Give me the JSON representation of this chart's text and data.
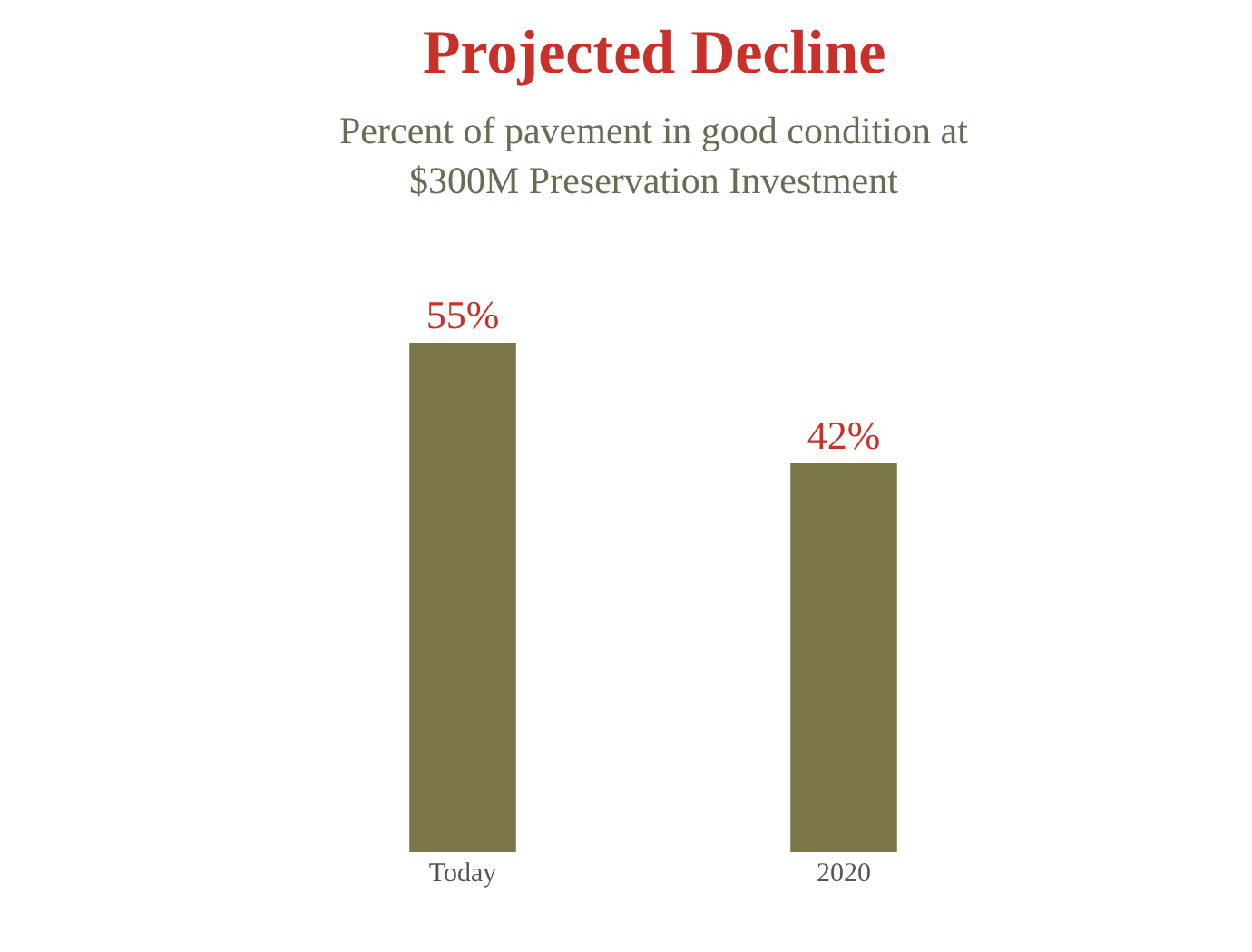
{
  "chart_data": {
    "type": "bar",
    "title": "Projected Decline",
    "subtitle": "Percent of pavement in good condition at\n$300M Preservation Investment",
    "categories": [
      "Today",
      "2020"
    ],
    "values": [
      55,
      42
    ],
    "value_labels": [
      "55%",
      "42%"
    ],
    "color": "#7b7748"
  }
}
